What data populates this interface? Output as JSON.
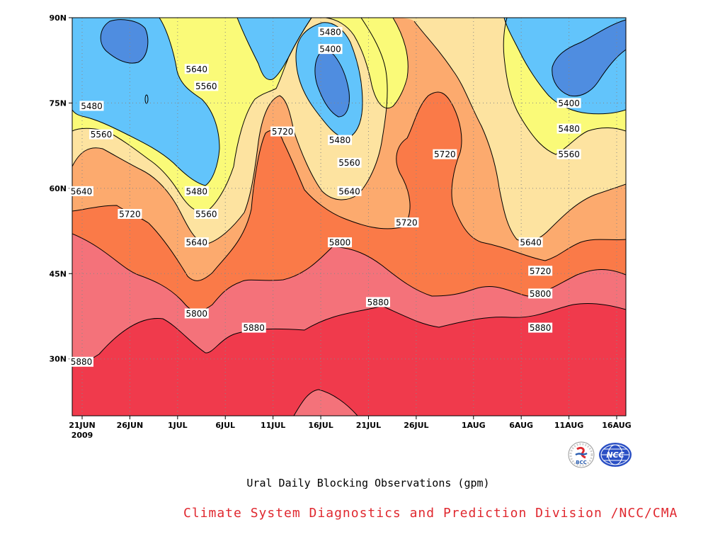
{
  "colors": {
    "contour_fill_levels": [
      "#4f8de0",
      "#62c4fb",
      "#fafa78",
      "#fde3a0",
      "#fcaa6e",
      "#fa7a48",
      "#f4727a",
      "#f03a4c"
    ],
    "credit_text": "#e0282f"
  },
  "chart_data": {
    "type": "heatmap",
    "subtype": "time-latitude filled contour (500hPa geopotential height)",
    "title": "Ural Daily Blocking Observations (gpm)",
    "xlabel": "",
    "ylabel": "",
    "x_ticks": [
      "21JUN",
      "26JUN",
      "1JUL",
      "6JUL",
      "11JUL",
      "16JUL",
      "21JUL",
      "26JUL",
      "1AUG",
      "6AUG",
      "11AUG",
      "16AUG"
    ],
    "x_year_label": "2009",
    "y_ticks": [
      "30N",
      "45N",
      "60N",
      "75N",
      "90N"
    ],
    "ylim": [
      20,
      90
    ],
    "contour_levels": [
      5400,
      5480,
      5560,
      5640,
      5720,
      5800,
      5880
    ],
    "grid": "dotted",
    "contour_labels": [
      {
        "text": "5480",
        "date": "17JUL",
        "lat": 87.5
      },
      {
        "text": "5400",
        "date": "17JUL",
        "lat": 84.5
      },
      {
        "text": "5640",
        "date": "3JUL",
        "lat": 81
      },
      {
        "text": "5560",
        "date": "4JUL",
        "lat": 78
      },
      {
        "text": "5480",
        "date": "22JUN",
        "lat": 74.5
      },
      {
        "text": "5560",
        "date": "23JUN",
        "lat": 69.5
      },
      {
        "text": "5720",
        "date": "12JUL",
        "lat": 70
      },
      {
        "text": "5480",
        "date": "18JUL",
        "lat": 68.5
      },
      {
        "text": "5560",
        "date": "19JUL",
        "lat": 64.5
      },
      {
        "text": "5720",
        "date": "29JUL",
        "lat": 66
      },
      {
        "text": "5400",
        "date": "11AUG",
        "lat": 75
      },
      {
        "text": "5480",
        "date": "11AUG",
        "lat": 70.5
      },
      {
        "text": "5560",
        "date": "11AUG",
        "lat": 66
      },
      {
        "text": "5640",
        "date": "20JUN",
        "lat": 59.5
      },
      {
        "text": "5480",
        "date": "3JUL",
        "lat": 59.5
      },
      {
        "text": "5640",
        "date": "19JUL",
        "lat": 59.5
      },
      {
        "text": "5720",
        "date": "26JUN",
        "lat": 55.5
      },
      {
        "text": "5560",
        "date": "4JUL",
        "lat": 55.5
      },
      {
        "text": "5720",
        "date": "25JUL",
        "lat": 54
      },
      {
        "text": "5640",
        "date": "3JUL",
        "lat": 50.5
      },
      {
        "text": "5800",
        "date": "18JUL",
        "lat": 50.5
      },
      {
        "text": "5640",
        "date": "7AUG",
        "lat": 50.5
      },
      {
        "text": "5720",
        "date": "8AUG",
        "lat": 45.5
      },
      {
        "text": "5800",
        "date": "8AUG",
        "lat": 41.5
      },
      {
        "text": "5800",
        "date": "3JUL",
        "lat": 38
      },
      {
        "text": "5880",
        "date": "22JUL",
        "lat": 40
      },
      {
        "text": "5880",
        "date": "9JUL",
        "lat": 35.5
      },
      {
        "text": "5880",
        "date": "8AUG",
        "lat": 35.5
      },
      {
        "text": "5880",
        "date": "21JUN",
        "lat": 29.5
      }
    ]
  },
  "footer": {
    "caption": "Ural Daily Blocking Observations (gpm)",
    "credit": "Climate System Diagnostics and Prediction Division /NCC/CMA",
    "logo_bcc_text": "BCC",
    "logo_ncc_text": "NCC"
  }
}
